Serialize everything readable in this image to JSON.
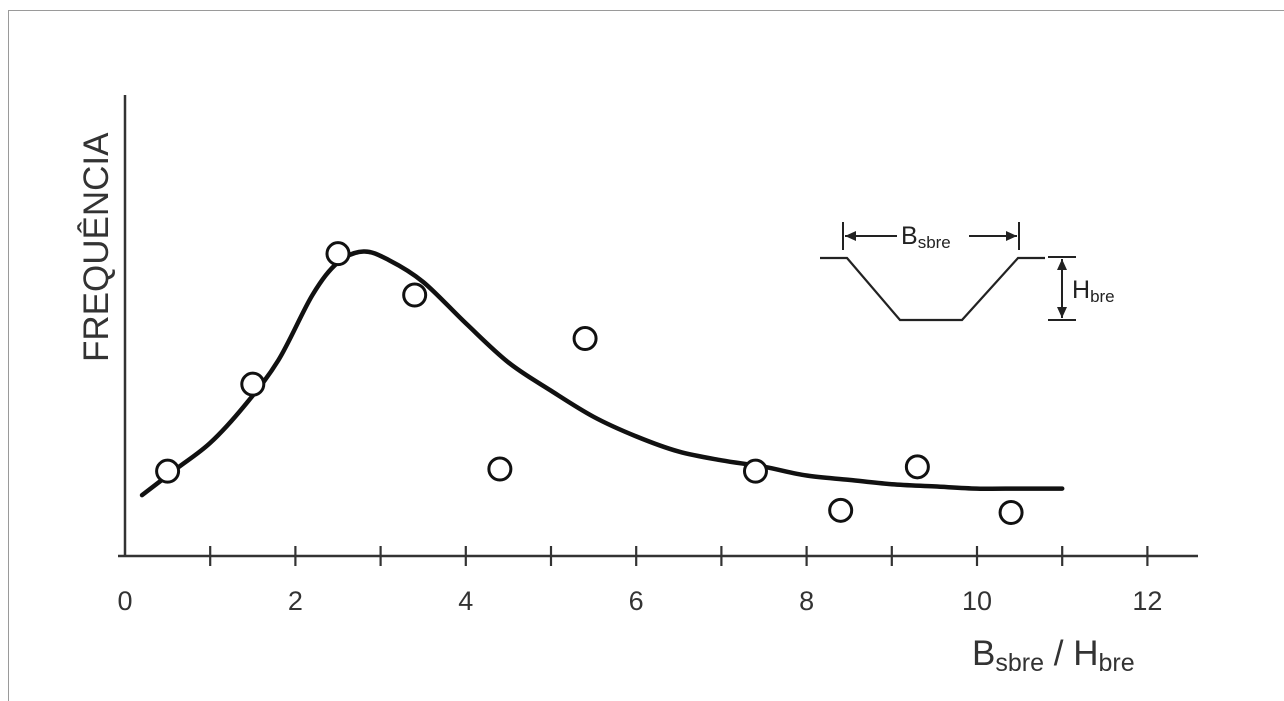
{
  "chart_data": {
    "type": "scatter",
    "xlim": [
      0,
      12
    ],
    "xticks": [
      "0",
      "2",
      "4",
      "6",
      "8",
      "10",
      "12"
    ],
    "minor_x_step": 1,
    "ylabel": "FREQUÊNCIA",
    "xlabel": {
      "b_main": "B",
      "b_sub": "sbre",
      "sep": " / ",
      "h_main": "H",
      "h_sub": "bre"
    },
    "grid": false,
    "yaxis_values_shown": false,
    "points": [
      {
        "x": 0.5,
        "y": 1.95
      },
      {
        "x": 1.5,
        "y": 3.95
      },
      {
        "x": 2.5,
        "y": 6.95
      },
      {
        "x": 3.4,
        "y": 6.0
      },
      {
        "x": 4.4,
        "y": 2.0
      },
      {
        "x": 5.4,
        "y": 5.0
      },
      {
        "x": 7.4,
        "y": 1.95
      },
      {
        "x": 8.4,
        "y": 1.05
      },
      {
        "x": 9.3,
        "y": 2.05
      },
      {
        "x": 10.4,
        "y": 1.0
      }
    ],
    "fit_curve": [
      [
        0.2,
        1.4
      ],
      [
        0.6,
        2.0
      ],
      [
        1.0,
        2.6
      ],
      [
        1.4,
        3.45
      ],
      [
        1.8,
        4.5
      ],
      [
        2.2,
        6.0
      ],
      [
        2.5,
        6.75
      ],
      [
        2.8,
        7.0
      ],
      [
        3.1,
        6.8
      ],
      [
        3.5,
        6.3
      ],
      [
        4.0,
        5.35
      ],
      [
        4.5,
        4.45
      ],
      [
        5.0,
        3.8
      ],
      [
        5.5,
        3.2
      ],
      [
        6.0,
        2.75
      ],
      [
        6.5,
        2.4
      ],
      [
        7.0,
        2.2
      ],
      [
        7.5,
        2.05
      ],
      [
        8.0,
        1.85
      ],
      [
        8.5,
        1.75
      ],
      [
        9.0,
        1.65
      ],
      [
        9.5,
        1.6
      ],
      [
        10.0,
        1.55
      ],
      [
        10.5,
        1.55
      ],
      [
        11.0,
        1.55
      ]
    ],
    "inset": {
      "width_label_main": "B",
      "width_label_sub": "sbre",
      "height_label_main": "H",
      "height_label_sub": "bre"
    }
  }
}
